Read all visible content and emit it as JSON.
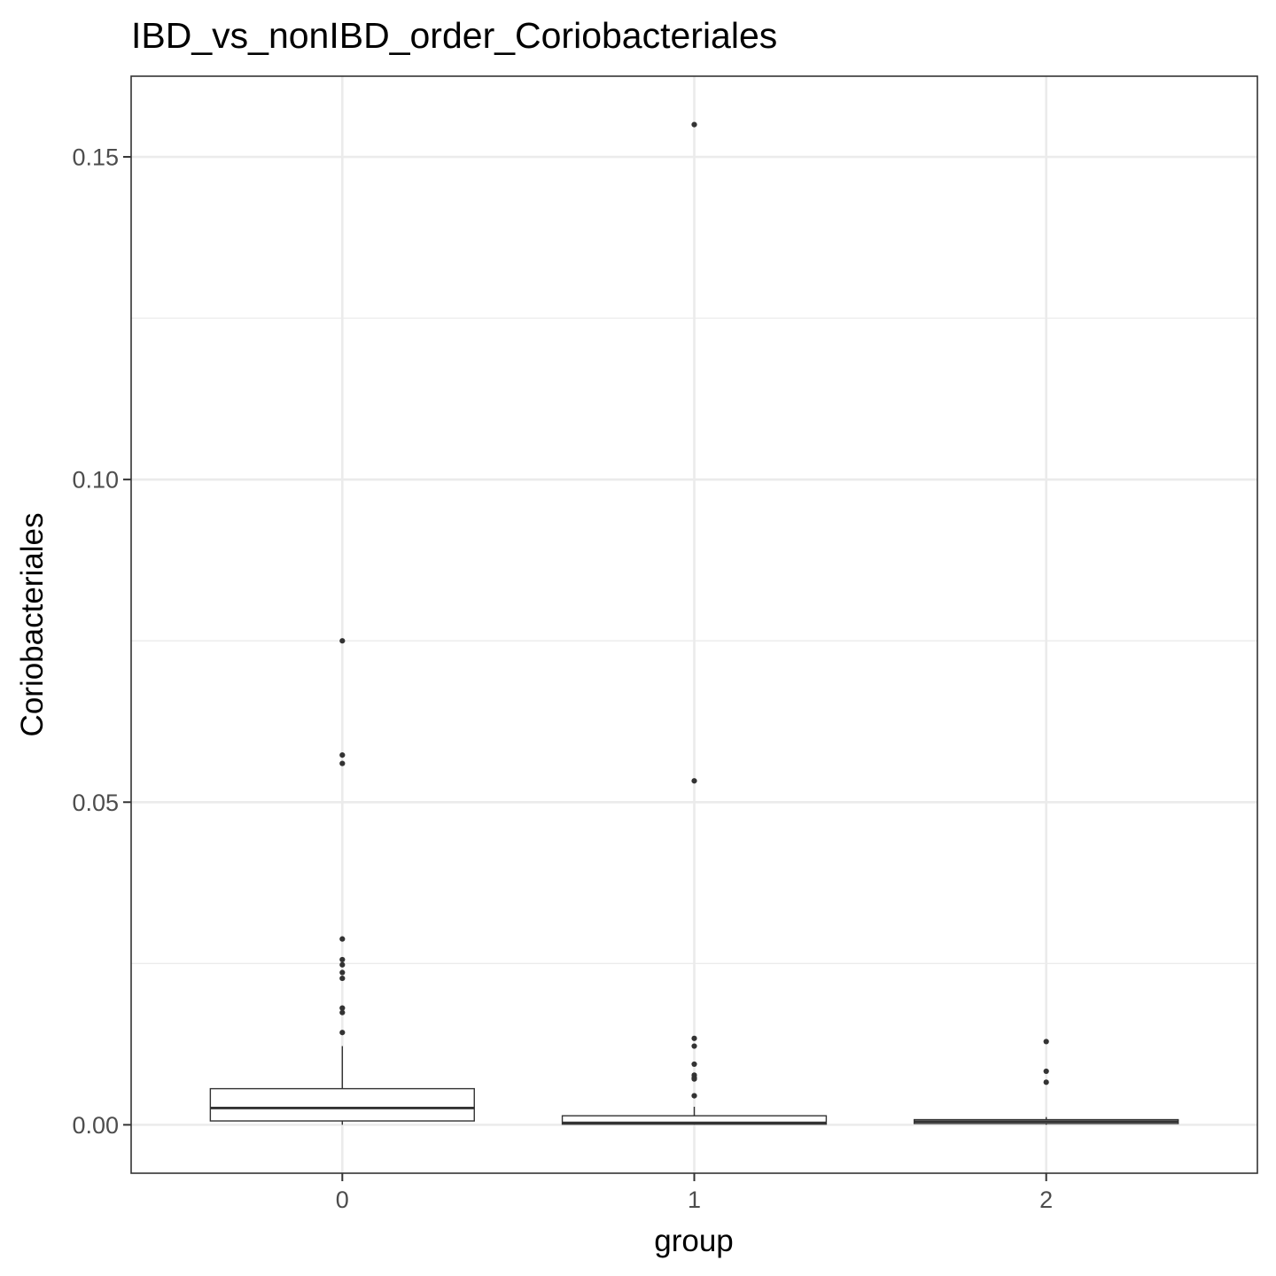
{
  "chart_data": {
    "type": "box",
    "title": "IBD_vs_nonIBD_order_Coriobacteriales",
    "xlabel": "group",
    "ylabel": "Coriobacteriales",
    "categories": [
      "0",
      "1",
      "2"
    ],
    "yticks": [
      {
        "value": 0.0,
        "label": "0.00"
      },
      {
        "value": 0.05,
        "label": "0.05"
      },
      {
        "value": 0.1,
        "label": "0.10"
      },
      {
        "value": 0.15,
        "label": "0.15"
      }
    ],
    "ylim": [
      -0.0075,
      0.1625
    ],
    "grid": true,
    "boxes": [
      {
        "category": "0",
        "whisker_low": 0.0,
        "q1": 0.0006,
        "median": 0.0026,
        "q3": 0.0056,
        "whisker_high": 0.0122,
        "outliers": [
          0.075,
          0.0573,
          0.056,
          0.0288,
          0.0256,
          0.0248,
          0.0236,
          0.0227,
          0.0181,
          0.0174,
          0.0143
        ]
      },
      {
        "category": "1",
        "whisker_low": 0.0,
        "q1": 0.0001,
        "median": 0.0003,
        "q3": 0.0014,
        "whisker_high": 0.0028,
        "outliers": [
          0.155,
          0.0533,
          0.0134,
          0.0122,
          0.0094,
          0.0077,
          0.0073,
          0.0071,
          0.0045
        ]
      },
      {
        "category": "2",
        "whisker_low": 0.0,
        "q1": 0.0002,
        "median": 0.0005,
        "q3": 0.0008,
        "whisker_high": 0.0012,
        "outliers": [
          0.0129,
          0.0083,
          0.0066
        ]
      }
    ],
    "colors": {
      "box_stroke": "#333333",
      "grid": "#ebebeb",
      "tick_text": "#4d4d4d"
    }
  }
}
